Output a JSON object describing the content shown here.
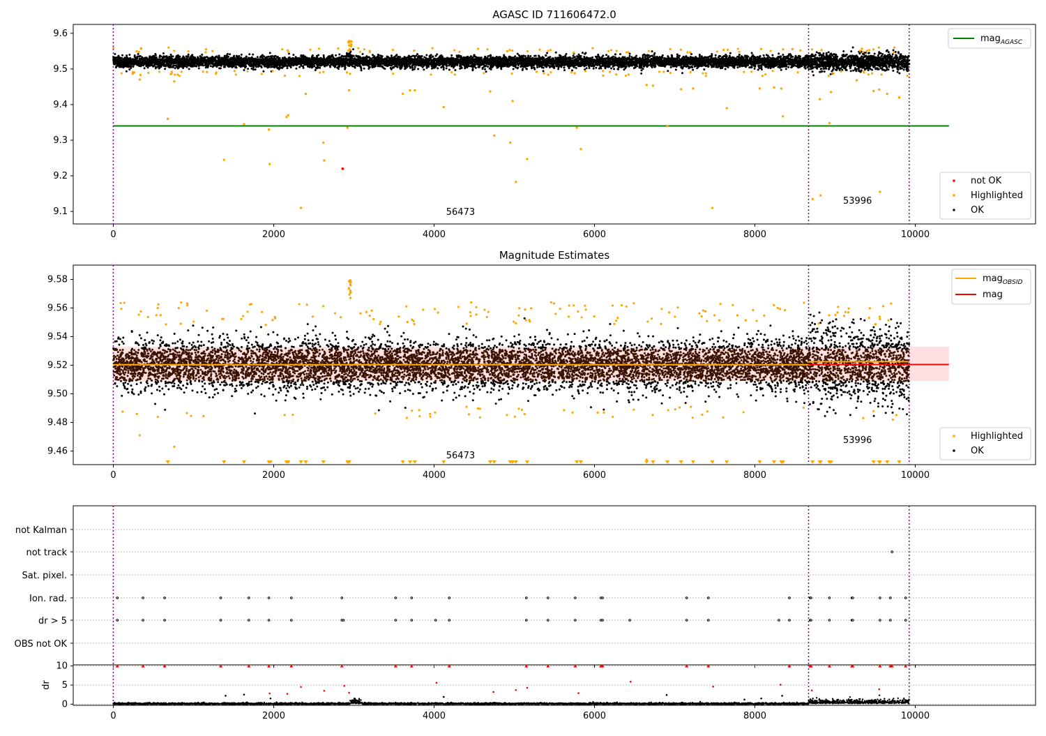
{
  "chart_data": [
    {
      "type": "scatter",
      "title": "AGASC ID 711606472.0",
      "xlim": [
        -500,
        11500
      ],
      "ylim": [
        9.065,
        9.625
      ],
      "xticks": [
        0,
        2000,
        4000,
        6000,
        8000,
        10000
      ],
      "yticks": [
        9.1,
        9.2,
        9.3,
        9.4,
        9.5,
        9.6
      ],
      "vlines": [
        0,
        8670,
        9925
      ],
      "hline": {
        "name": "mag",
        "sub": "AGASC",
        "y": 9.34,
        "x": [
          0,
          10420
        ],
        "color": "#008000"
      },
      "annotations": [
        {
          "text": "56473",
          "x": 4150,
          "y": 9.09
        },
        {
          "text": "53996",
          "x": 9100,
          "y": 9.122
        }
      ],
      "series": [
        {
          "name": "not OK",
          "color": "#ff0000"
        },
        {
          "name": "Highlighted",
          "color": "#ffa500"
        },
        {
          "name": "OK",
          "color": "#000000"
        }
      ],
      "band_ok": {
        "x": [
          0,
          9925
        ],
        "center": 9.52,
        "spread": 0.012
      },
      "outliers_highlighted": [
        [
          330,
          9.47
        ],
        [
          680,
          9.36
        ],
        [
          760,
          9.465
        ],
        [
          1380,
          9.245
        ],
        [
          1630,
          9.345
        ],
        [
          1940,
          9.33
        ],
        [
          1950,
          9.233
        ],
        [
          2160,
          9.365
        ],
        [
          2180,
          9.37
        ],
        [
          2340,
          9.11
        ],
        [
          2400,
          9.43
        ],
        [
          2620,
          9.293
        ],
        [
          2630,
          9.243
        ],
        [
          2920,
          9.335
        ],
        [
          2940,
          9.44
        ],
        [
          3610,
          9.43
        ],
        [
          3700,
          9.44
        ],
        [
          3760,
          9.44
        ],
        [
          4120,
          9.393
        ],
        [
          4700,
          9.437
        ],
        [
          4750,
          9.313
        ],
        [
          4950,
          9.293
        ],
        [
          4980,
          9.41
        ],
        [
          5020,
          9.183
        ],
        [
          5160,
          9.247
        ],
        [
          5780,
          9.335
        ],
        [
          5830,
          9.275
        ],
        [
          6650,
          9.455
        ],
        [
          6730,
          9.453
        ],
        [
          6910,
          9.34
        ],
        [
          7080,
          9.443
        ],
        [
          7230,
          9.445
        ],
        [
          7470,
          9.11
        ],
        [
          7650,
          9.39
        ],
        [
          8060,
          9.445
        ],
        [
          8240,
          9.448
        ],
        [
          8330,
          9.445
        ],
        [
          8350,
          9.367
        ],
        [
          8720,
          9.135
        ],
        [
          8810,
          9.415
        ],
        [
          8820,
          9.145
        ],
        [
          8930,
          9.348
        ],
        [
          8950,
          9.435
        ],
        [
          9270,
          9.468
        ],
        [
          9480,
          9.438
        ],
        [
          9550,
          9.442
        ],
        [
          9560,
          9.155
        ],
        [
          9650,
          9.43
        ],
        [
          9800,
          9.42
        ]
      ],
      "outliers_notok": [
        [
          2860,
          9.22
        ]
      ]
    },
    {
      "type": "scatter",
      "title": "Magnitude Estimates",
      "xlim": [
        -500,
        11500
      ],
      "ylim": [
        9.4505,
        9.59
      ],
      "xticks": [
        0,
        2000,
        4000,
        6000,
        8000,
        10000
      ],
      "yticks": [
        9.46,
        9.48,
        9.5,
        9.52,
        9.54,
        9.56,
        9.58
      ],
      "vlines": [
        0,
        8670,
        9925
      ],
      "mag_line": {
        "name": "mag",
        "y": 9.5205,
        "x": [
          0,
          10420
        ],
        "band": [
          9.509,
          9.533
        ],
        "color": "#ff0000"
      },
      "mag_obsid": {
        "name": "mag",
        "sub": "OBSID",
        "color": "#ffa500"
      },
      "annotations": [
        {
          "text": "56473",
          "x": 4150,
          "y": 9.455
        },
        {
          "text": "53996",
          "x": 9100,
          "y": 9.4655
        }
      ],
      "series": [
        {
          "name": "Highlighted",
          "color": "#ffa500"
        },
        {
          "name": "OK",
          "color": "#000000"
        }
      ],
      "low_markers_x": [
        680,
        1380,
        1630,
        1940,
        1960,
        2160,
        2180,
        2340,
        2400,
        2620,
        2920,
        2940,
        3610,
        3700,
        3760,
        4120,
        4700,
        4750,
        4950,
        4980,
        5020,
        5160,
        5780,
        5830,
        6650,
        6730,
        6910,
        7080,
        7230,
        7470,
        7650,
        8060,
        8240,
        8330,
        8350,
        8720,
        8810,
        8820,
        8930,
        8950,
        9480,
        9550,
        9560,
        9650,
        9800
      ]
    },
    {
      "type": "scatter",
      "title": "",
      "xlim": [
        -500,
        11500
      ],
      "xticks": [
        0,
        2000,
        4000,
        6000,
        8000,
        10000
      ],
      "vlines": [
        0,
        8670,
        9925
      ],
      "flag_labels": [
        "not Kalman",
        "not track",
        "Sat. pixel.",
        "Ion. rad.",
        "dr > 5",
        "OBS not OK"
      ],
      "flag_points": {
        "not track": [
          9710
        ],
        "Ion. rad.": [
          50,
          370,
          640,
          1340,
          1690,
          1940,
          2220,
          2850,
          3520,
          3720,
          4190,
          5150,
          5420,
          5760,
          6080,
          6100,
          7150,
          7420,
          8430,
          8690,
          8700,
          8930,
          9210,
          9220,
          9560,
          9690,
          9880
        ],
        "dr > 5": [
          50,
          370,
          640,
          1340,
          1690,
          1940,
          2220,
          2850,
          2870,
          3520,
          3720,
          4020,
          4190,
          5150,
          5420,
          5760,
          6080,
          6100,
          6440,
          7150,
          7420,
          8300,
          8430,
          8690,
          8700,
          8930,
          9210,
          9220,
          9560,
          9690,
          9880
        ]
      },
      "dr_ylabel": "dr",
      "dr_yticks": [
        0,
        5,
        10
      ],
      "dr_ylim": [
        -0.3,
        10.3
      ],
      "dr_clipped_x": [
        50,
        370,
        640,
        1340,
        1690,
        1940,
        2220,
        2850,
        3520,
        3720,
        4190,
        5150,
        5420,
        5760,
        6080,
        6100,
        7150,
        7420,
        8430,
        8690,
        8700,
        8930,
        9210,
        9220,
        9560,
        9690,
        9710,
        9880
      ],
      "dr_mid_points": [
        [
          1400,
          2.2
        ],
        [
          1630,
          2.5
        ],
        [
          1950,
          2.8
        ],
        [
          1960,
          1.5
        ],
        [
          2170,
          2.7
        ],
        [
          2340,
          4.5
        ],
        [
          2630,
          3.5
        ],
        [
          2880,
          4.8
        ],
        [
          2940,
          3.0
        ],
        [
          4030,
          5.6
        ],
        [
          4120,
          1.9
        ],
        [
          4740,
          3.2
        ],
        [
          5020,
          3.7
        ],
        [
          5160,
          4.3
        ],
        [
          5800,
          2.9
        ],
        [
          6450,
          5.9
        ],
        [
          6900,
          2.4
        ],
        [
          7480,
          4.6
        ],
        [
          7870,
          1.2
        ],
        [
          8080,
          1.5
        ],
        [
          8320,
          5.1
        ],
        [
          8340,
          2.2
        ],
        [
          8710,
          3.6
        ],
        [
          9550,
          3.9
        ]
      ]
    }
  ]
}
